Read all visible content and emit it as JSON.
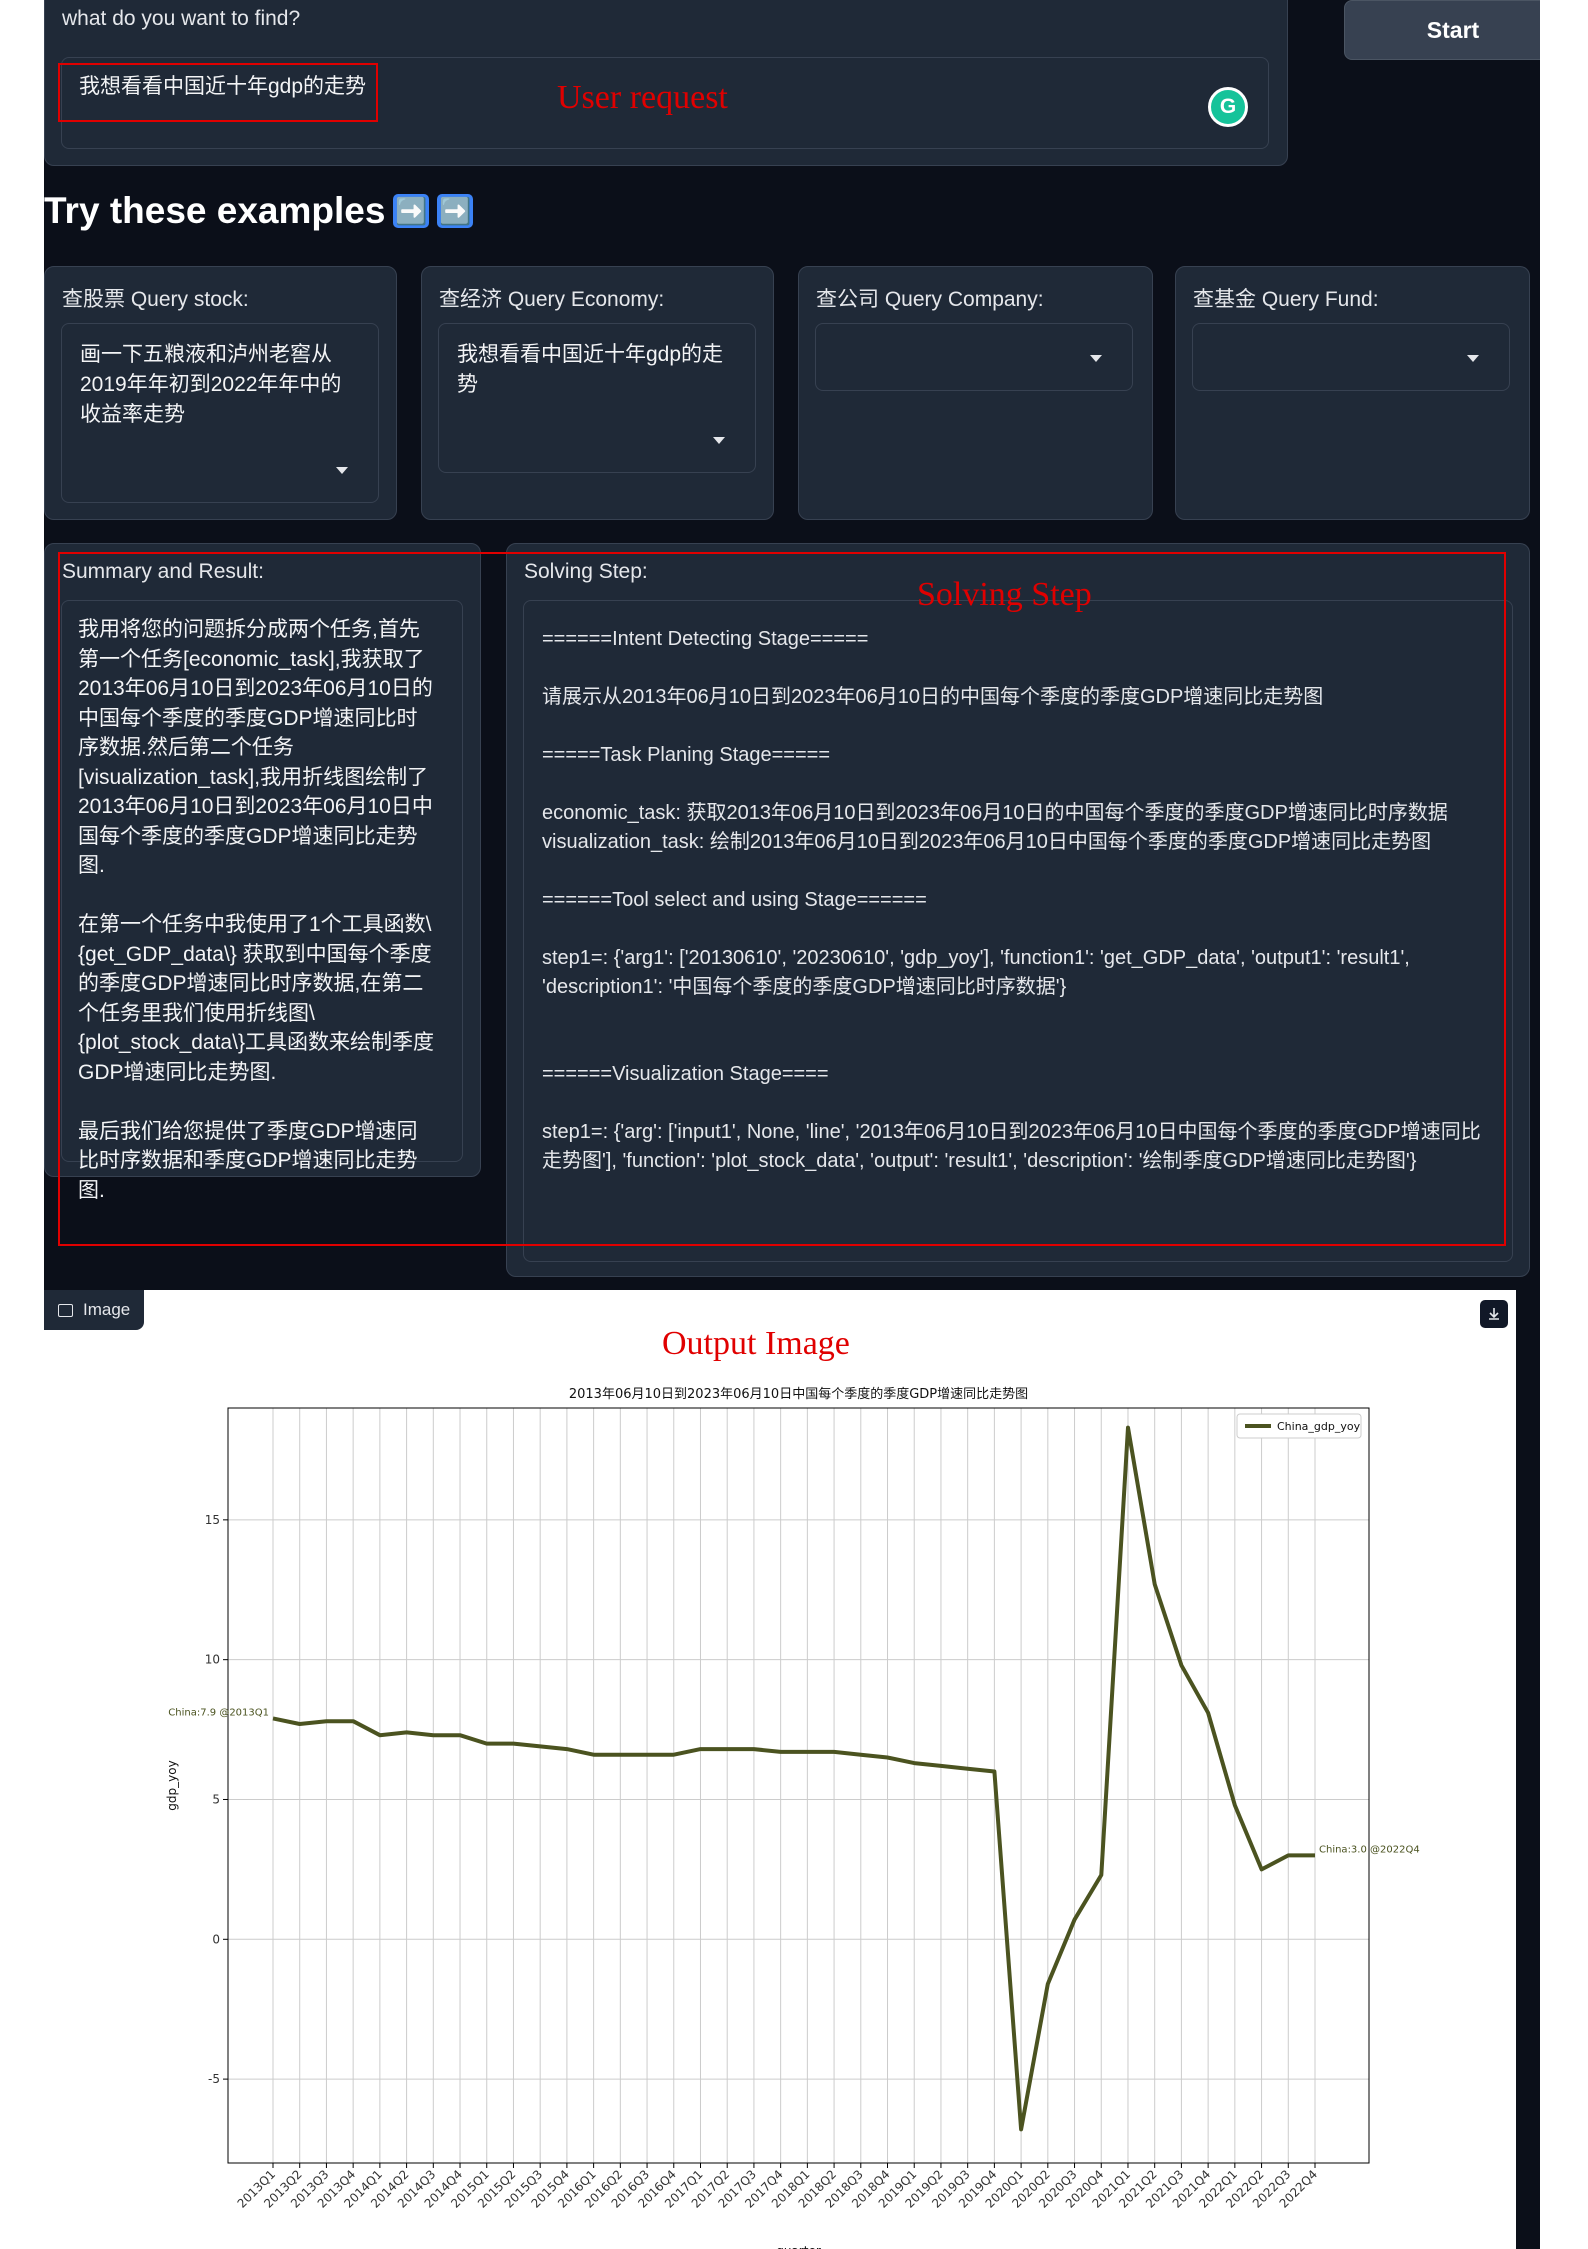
{
  "query": {
    "label": "what do you want to find?",
    "value": "我想看看中国近十年gdp的走势",
    "grammarly_icon": "G"
  },
  "start_label": "Start",
  "examples": {
    "title": "Try these examples",
    "title_icons": [
      "➡️",
      "➡️"
    ],
    "boxes": [
      {
        "label": "查股票 Query stock:",
        "value": "画一下五粮液和泸州老窖从2019年年初到2022年年中的收益率走势"
      },
      {
        "label": "查经济 Query Economy:",
        "value": "我想看看中国近十年gdp的走势"
      },
      {
        "label": "查公司 Query Company:",
        "value": ""
      },
      {
        "label": "查基金 Query Fund:",
        "value": ""
      }
    ]
  },
  "summary": {
    "label": "Summary and Result:",
    "text": "我用将您的问题拆分成两个任务,首先第一个任务[economic_task],我获取了2013年06月10日到2023年06月10日的中国每个季度的季度GDP增速同比时序数据.然后第二个任务[visualization_task],我用折线图绘制了2013年06月10日到2023年06月10日中国每个季度的季度GDP增速同比走势图.\n\n在第一个任务中我使用了1个工具函数\\{get_GDP_data\\} 获取到中国每个季度的季度GDP增速同比时序数据,在第二个任务里我们使用折线图\\{plot_stock_data\\}工具函数来绘制季度GDP增速同比走势图.\n\n最后我们给您提供了季度GDP增速同比时序数据和季度GDP增速同比走势图."
  },
  "solving": {
    "label": "Solving Step:",
    "text": "======Intent Detecting Stage=====\n\n请展示从2013年06月10日到2023年06月10日的中国每个季度的季度GDP增速同比走势图\n\n=====Task Planing Stage=====\n\neconomic_task: 获取2013年06月10日到2023年06月10日的中国每个季度的季度GDP增速同比时序数据\nvisualization_task: 绘制2013年06月10日到2023年06月10日中国每个季度的季度GDP增速同比走势图\n\n======Tool select and using Stage======\n\nstep1=: {'arg1': ['20130610', '20230610', 'gdp_yoy'], 'function1': 'get_GDP_data', 'output1': 'result1', 'description1': '中国每个季度的季度GDP增速同比时序数据'}\n\n\n======Visualization Stage====\n\nstep1=: {'arg': ['input1', None, 'line', '2013年06月10日到2023年06月10日中国每个季度的季度GDP增速同比走势图'], 'function': 'plot_stock_data', 'output': 'result1', 'description': '绘制季度GDP增速同比走势图'}"
  },
  "annotations": {
    "user_request": "User request",
    "solving_step": "Solving Step",
    "output_image": "Output Image"
  },
  "image_tab_label": "Image",
  "colors": {
    "background": "#0b0f19",
    "panel": "#1f2937",
    "annotation": "#e00000",
    "line": "#4b5320"
  },
  "chart_data": {
    "type": "line",
    "title": "2013年06月10日到2023年06月10日中国每个季度的季度GDP增速同比走势图",
    "xlabel": "quarter",
    "ylabel": "gdp_yoy",
    "legend": "top-right",
    "grid": true,
    "ylim": [
      -8,
      19
    ],
    "yticks": [
      -5,
      0,
      5,
      10,
      15
    ],
    "categories": [
      "2013Q1",
      "2013Q2",
      "2013Q3",
      "2013Q4",
      "2014Q1",
      "2014Q2",
      "2014Q3",
      "2014Q4",
      "2015Q1",
      "2015Q2",
      "2015Q3",
      "2015Q4",
      "2016Q1",
      "2016Q2",
      "2016Q3",
      "2016Q4",
      "2017Q1",
      "2017Q2",
      "2017Q3",
      "2017Q4",
      "2018Q1",
      "2018Q2",
      "2018Q3",
      "2018Q4",
      "2019Q1",
      "2019Q2",
      "2019Q3",
      "2019Q4",
      "2020Q1",
      "2020Q2",
      "2020Q3",
      "2020Q4",
      "2021Q1",
      "2021Q2",
      "2021Q3",
      "2021Q4",
      "2022Q1",
      "2022Q2",
      "2022Q3",
      "2022Q4"
    ],
    "series": [
      {
        "name": "China_gdp_yoy",
        "values": [
          7.9,
          7.7,
          7.8,
          7.8,
          7.3,
          7.4,
          7.3,
          7.3,
          7.0,
          7.0,
          6.9,
          6.8,
          6.6,
          6.6,
          6.6,
          6.6,
          6.8,
          6.8,
          6.8,
          6.7,
          6.7,
          6.7,
          6.6,
          6.5,
          6.3,
          6.2,
          6.1,
          6.0,
          -6.8,
          -1.6,
          0.7,
          2.3,
          18.3,
          12.7,
          9.8,
          8.1,
          4.8,
          2.5,
          3.0,
          3.0
        ]
      }
    ],
    "annotations": [
      {
        "text": "China:7.9 @2013Q1"
      },
      {
        "text": "China:3.0 @2022Q4"
      }
    ]
  }
}
